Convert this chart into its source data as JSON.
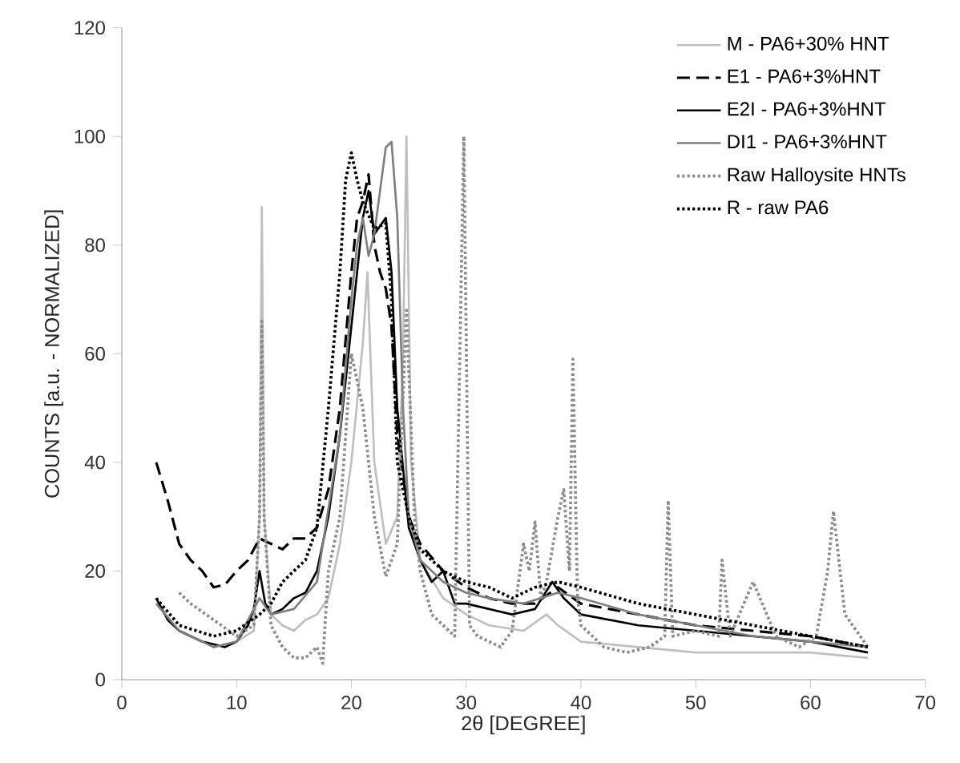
{
  "chart_data": {
    "type": "line",
    "xlabel": "2θ [DEGREE]",
    "ylabel": "COUNTS [a.u. - NORMALIZED]",
    "xlim": [
      0,
      70
    ],
    "ylim": [
      0,
      120
    ],
    "xticks": [
      0,
      10,
      20,
      30,
      40,
      50,
      60,
      70
    ],
    "yticks": [
      0,
      20,
      40,
      60,
      80,
      100,
      120
    ],
    "grid": false,
    "legend": "top right",
    "marker": "none",
    "series": [
      {
        "name": "M - PA6+30% HNT",
        "color": "#bfbfbf",
        "line_style": "solid",
        "x": [
          3,
          5,
          8,
          10,
          11.5,
          12,
          12.2,
          12.4,
          13,
          14,
          15,
          16,
          17,
          18,
          19,
          20,
          21,
          21.4,
          22,
          23,
          24,
          24.5,
          24.8,
          25.2,
          26,
          28,
          30,
          32,
          35,
          37,
          38,
          40,
          45,
          50,
          55,
          60,
          65
        ],
        "values": [
          14,
          9,
          6,
          7,
          9,
          30,
          87,
          30,
          12,
          10,
          9,
          11,
          12,
          15,
          25,
          40,
          62,
          75,
          40,
          25,
          30,
          60,
          100,
          40,
          22,
          15,
          12,
          10,
          9,
          12,
          10,
          7,
          6,
          5,
          5,
          5,
          4
        ]
      },
      {
        "name": "E1 - PA6+3%HNT",
        "color": "#000000",
        "line_style": "dashed",
        "x": [
          3,
          4,
          5,
          6,
          7,
          8,
          9,
          10,
          11,
          12,
          13,
          14,
          15,
          16,
          17,
          18,
          19,
          20,
          20.5,
          21,
          21.5,
          22,
          22.5,
          23,
          23.5,
          24,
          25,
          26,
          28,
          30,
          32,
          34,
          36,
          38,
          40,
          45,
          50,
          55,
          60,
          65
        ],
        "values": [
          40,
          33,
          25,
          22,
          20,
          17,
          17.5,
          20,
          22,
          26,
          25,
          24,
          26,
          26,
          28,
          35,
          50,
          75,
          85,
          88,
          93,
          80,
          75,
          72,
          65,
          45,
          30,
          25,
          20,
          17,
          15,
          14,
          14,
          17,
          14,
          12,
          10,
          9,
          8,
          6
        ]
      },
      {
        "name": "E2I - PA6+3%HNT",
        "color": "#000000",
        "line_style": "solid",
        "x": [
          3,
          4,
          5,
          7,
          9,
          10,
          11,
          11.5,
          12,
          12.5,
          13,
          14,
          15,
          16,
          17,
          18,
          19,
          20,
          21,
          21.5,
          22,
          23,
          23.5,
          24,
          25,
          26,
          27,
          28,
          29,
          30,
          32,
          34,
          36,
          37.5,
          38.5,
          40,
          45,
          50,
          55,
          60,
          65
        ],
        "values": [
          15,
          11,
          9,
          7,
          6,
          7,
          10,
          13,
          20,
          14,
          12,
          13,
          15,
          16,
          20,
          30,
          45,
          65,
          85,
          90,
          82,
          85,
          75,
          50,
          28,
          22,
          18,
          20,
          14,
          14,
          13,
          12,
          13,
          18,
          15,
          12,
          10,
          9,
          8,
          7,
          5
        ]
      },
      {
        "name": "DI1 - PA6+3%HNT",
        "color": "#7f7f7f",
        "line_style": "solid",
        "x": [
          3,
          5,
          8,
          10,
          12,
          13,
          15,
          17,
          19,
          20,
          20.5,
          21,
          21.5,
          22,
          22.5,
          23,
          23.5,
          24,
          24.5,
          25,
          26,
          28,
          30,
          32,
          35,
          38,
          40,
          45,
          50,
          55,
          60,
          65
        ],
        "values": [
          14,
          9,
          6,
          7,
          15,
          12,
          13,
          18,
          45,
          70,
          80,
          85,
          78,
          82,
          90,
          98,
          99,
          85,
          50,
          30,
          22,
          18,
          16,
          15,
          14,
          16,
          15,
          12,
          10,
          8,
          7,
          6
        ]
      },
      {
        "name": "Raw Halloysite HNTs",
        "color": "#8c8c8c",
        "line_style": "dotted",
        "x": [
          5,
          6,
          8,
          10,
          11.5,
          12,
          12.2,
          12.4,
          13,
          14,
          15,
          16,
          17,
          17.5,
          18,
          19,
          19.5,
          20,
          21,
          22,
          23,
          24,
          24.8,
          25.5,
          26,
          27,
          28,
          29,
          29.8,
          30.3,
          31,
          33,
          34,
          35,
          35.5,
          36,
          36.5,
          37,
          38,
          38.5,
          39,
          39.3,
          39.7,
          40,
          42,
          44,
          46,
          47.3,
          47.6,
          48,
          50,
          52,
          52.3,
          53,
          55,
          57,
          59,
          60.5,
          61.5,
          62,
          63,
          64,
          65
        ],
        "values": [
          16,
          14,
          11,
          8,
          10,
          30,
          66,
          30,
          10,
          6,
          4,
          4,
          6,
          3,
          20,
          30,
          45,
          60,
          50,
          30,
          19,
          25,
          68,
          30,
          20,
          12,
          10,
          8,
          100,
          10,
          8,
          6,
          9,
          25,
          20,
          29,
          15,
          18,
          30,
          35,
          20,
          59,
          15,
          10,
          6,
          5,
          6,
          8,
          33,
          8,
          9,
          8,
          22,
          8,
          18,
          8,
          6,
          8,
          20,
          31,
          12,
          9,
          6
        ]
      },
      {
        "name": "R - raw PA6",
        "color": "#000000",
        "line_style": "dotted",
        "x": [
          3,
          5,
          8,
          10,
          12,
          13,
          14,
          15,
          16,
          17,
          18,
          19,
          19.5,
          20,
          20.5,
          21,
          22,
          23,
          23.5,
          24,
          25,
          26,
          28,
          30,
          32,
          34,
          36,
          38,
          40,
          45,
          50,
          55,
          60,
          65
        ],
        "values": [
          15,
          10,
          8,
          9,
          12,
          14,
          18,
          20,
          22,
          28,
          50,
          75,
          92,
          97,
          92,
          88,
          83,
          84,
          70,
          40,
          30,
          24,
          20,
          18,
          17,
          15,
          17,
          18,
          17,
          14,
          12,
          10,
          8,
          6
        ]
      }
    ]
  }
}
